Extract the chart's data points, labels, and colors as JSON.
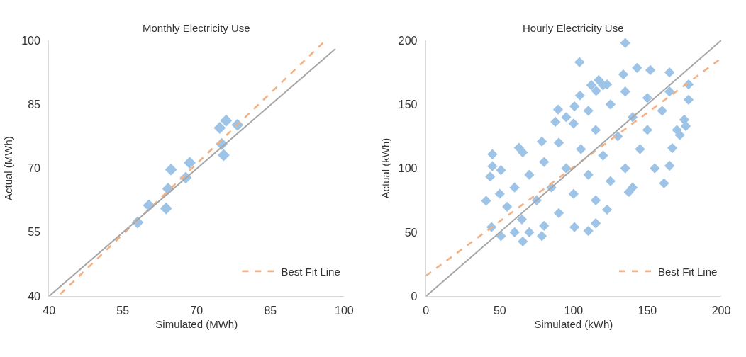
{
  "chart_data": [
    {
      "type": "scatter",
      "title": "Monthly Electricity Use",
      "xlabel": "Simulated (MWh)",
      "ylabel": "Actual (MWh)",
      "xlim": [
        40,
        100
      ],
      "ylim": [
        40,
        100
      ],
      "xticks": [
        40,
        55,
        70,
        85,
        100
      ],
      "yticks": [
        40,
        55,
        70,
        85,
        100
      ],
      "grid": false,
      "legend": "bottom right",
      "series": [
        {
          "type": "scatter",
          "marker": "diamond",
          "color": "#9dc3e6",
          "x": [
            58.0,
            60.3,
            63.8,
            64.2,
            64.8,
            67.8,
            68.6,
            75.1,
            75.5,
            74.7,
            76.0,
            78.3
          ],
          "values": [
            57.3,
            61.3,
            60.6,
            65.2,
            69.7,
            67.8,
            71.3,
            75.7,
            73.1,
            79.5,
            81.2,
            80.2
          ]
        },
        {
          "type": "line",
          "name": "Best Fit Line",
          "line_style": "dashed",
          "marker": "none",
          "color": "#f4b183",
          "x": [
            42.3,
            96.2
          ],
          "values": [
            40.5,
            100
          ]
        },
        {
          "type": "line",
          "line_style": "solid",
          "marker": "none",
          "color": "#a6a6a6",
          "x": [
            40,
            98.2
          ],
          "values": [
            40,
            98
          ]
        }
      ]
    },
    {
      "type": "scatter",
      "title": "Hourly Electricity Use",
      "xlabel": "Simulated (kWh)",
      "ylabel": "Actual (kWh)",
      "xlim": [
        0,
        200
      ],
      "ylim": [
        0,
        200
      ],
      "xticks": [
        0,
        50,
        100,
        150,
        200
      ],
      "yticks": [
        0,
        50,
        100,
        150,
        200
      ],
      "grid": false,
      "legend": "bottom right",
      "series": [
        {
          "type": "scatter",
          "marker": "diamond",
          "color": "#9dc3e6",
          "x": [
            135,
            104,
            143,
            117,
            112,
            89.5,
            63,
            45,
            45,
            172,
            175,
            110,
            115,
            43.5,
            40.7,
            44.4,
            50.8,
            65.6,
            78.5,
            100.6,
            122.7,
            137.4,
            161.3,
            165,
            166.9,
            176,
            177.9,
            177.9,
            165,
            152,
            133.7,
            122.7,
            115.3,
            104.3,
            100.6,
            87.7,
            78.5,
            65.6,
            50.8,
            55,
            60,
            65,
            70,
            75,
            80,
            80,
            85,
            90,
            90,
            95,
            100,
            100,
            105,
            110,
            110,
            115,
            115,
            120,
            125,
            125,
            130,
            135,
            135,
            140,
            145,
            150,
            150,
            155,
            160,
            165,
            170,
            60,
            70,
            50,
            140,
            95,
            120
          ],
          "values": [
            198,
            183,
            178.5,
            169,
            165,
            146,
            116,
            111,
            101.6,
            126,
            138,
            51,
            57,
            93.5,
            74.6,
            54,
            47,
            42.8,
            47,
            54,
            67.7,
            81.4,
            88.3,
            102,
            115.8,
            133,
            153.6,
            165.6,
            175,
            176.8,
            173.4,
            165.6,
            160.5,
            157,
            148.5,
            136.4,
            121,
            112.4,
            98.6,
            70,
            85,
            60,
            95,
            75,
            55,
            105,
            85,
            65,
            120,
            100,
            80,
            135,
            115,
            95,
            145,
            75,
            130,
            110,
            150,
            90,
            125,
            100,
            160,
            140,
            115,
            155,
            130,
            100,
            145,
            160,
            130,
            50,
            50,
            80,
            85,
            140,
            165
          ]
        },
        {
          "type": "line",
          "name": "Best Fit Line",
          "line_style": "dashed",
          "marker": "none",
          "color": "#f4b183",
          "x": [
            0,
            200
          ],
          "values": [
            16,
            186
          ]
        },
        {
          "type": "line",
          "line_style": "solid",
          "marker": "none",
          "color": "#a6a6a6",
          "x": [
            0,
            200
          ],
          "values": [
            0,
            200
          ]
        }
      ]
    }
  ]
}
